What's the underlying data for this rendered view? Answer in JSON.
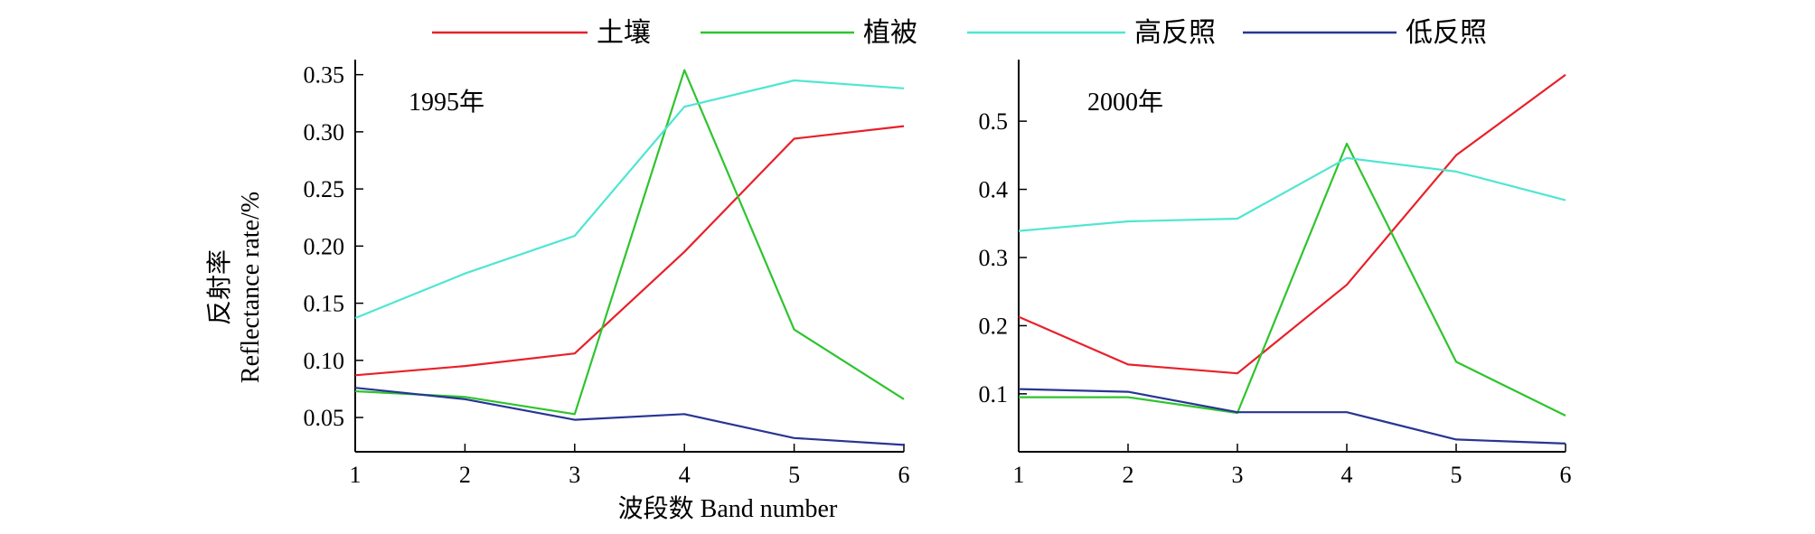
{
  "chart_data": {
    "type": "line",
    "legend": {
      "placement": "top",
      "entries": [
        {
          "name": "土壤",
          "color": "#e8202a"
        },
        {
          "name": "植被",
          "color": "#2ec42e"
        },
        {
          "name": "高反照",
          "color": "#4fe6d2"
        },
        {
          "name": "低反照",
          "color": "#283593"
        }
      ]
    },
    "xlabel": "波段数 Band number",
    "ylabel_cn": "反射率",
    "ylabel_en": "Reflectance rate/%",
    "grid": false,
    "panels": [
      {
        "title": "1995年",
        "x": [
          1,
          2,
          3,
          4,
          5,
          6
        ],
        "xlim": [
          1,
          6
        ],
        "ylim": [
          0.02,
          0.36
        ],
        "yticks": [
          0.05,
          0.1,
          0.15,
          0.2,
          0.25,
          0.3,
          0.35
        ],
        "ytick_labels": [
          "0.05",
          "0.10",
          "0.15",
          "0.20",
          "0.25",
          "0.30",
          "0.35"
        ],
        "xtick_labels": [
          "1",
          "2",
          "3",
          "4",
          "5",
          "6"
        ],
        "series": [
          {
            "name": "土壤",
            "color": "#e8202a",
            "values": [
              0.087,
              0.095,
              0.106,
              0.195,
              0.294,
              0.305
            ]
          },
          {
            "name": "植被",
            "color": "#2ec42e",
            "values": [
              0.073,
              0.068,
              0.053,
              0.354,
              0.127,
              0.066
            ]
          },
          {
            "name": "高反照",
            "color": "#4fe6d2",
            "values": [
              0.137,
              0.176,
              0.209,
              0.322,
              0.345,
              0.338
            ]
          },
          {
            "name": "低反照",
            "color": "#283593",
            "values": [
              0.076,
              0.066,
              0.048,
              0.053,
              0.032,
              0.026
            ]
          }
        ]
      },
      {
        "title": "2000年",
        "x": [
          1,
          2,
          3,
          4,
          5,
          6
        ],
        "xlim": [
          1,
          6
        ],
        "ylim": [
          0.015,
          0.585
        ],
        "yticks": [
          0.1,
          0.2,
          0.3,
          0.4,
          0.5
        ],
        "ytick_labels": [
          "0.1",
          "0.2",
          "0.3",
          "0.4",
          "0.5"
        ],
        "xtick_labels": [
          "1",
          "2",
          "3",
          "4",
          "5",
          "6"
        ],
        "series": [
          {
            "name": "土壤",
            "color": "#e8202a",
            "values": [
              0.213,
              0.143,
              0.13,
              0.26,
              0.45,
              0.568
            ]
          },
          {
            "name": "植被",
            "color": "#2ec42e",
            "values": [
              0.095,
              0.095,
              0.072,
              0.467,
              0.147,
              0.068
            ]
          },
          {
            "name": "高反照",
            "color": "#4fe6d2",
            "values": [
              0.339,
              0.353,
              0.357,
              0.446,
              0.426,
              0.384
            ]
          },
          {
            "name": "低反照",
            "color": "#283593",
            "values": [
              0.107,
              0.103,
              0.073,
              0.073,
              0.033,
              0.027
            ]
          }
        ]
      }
    ]
  }
}
